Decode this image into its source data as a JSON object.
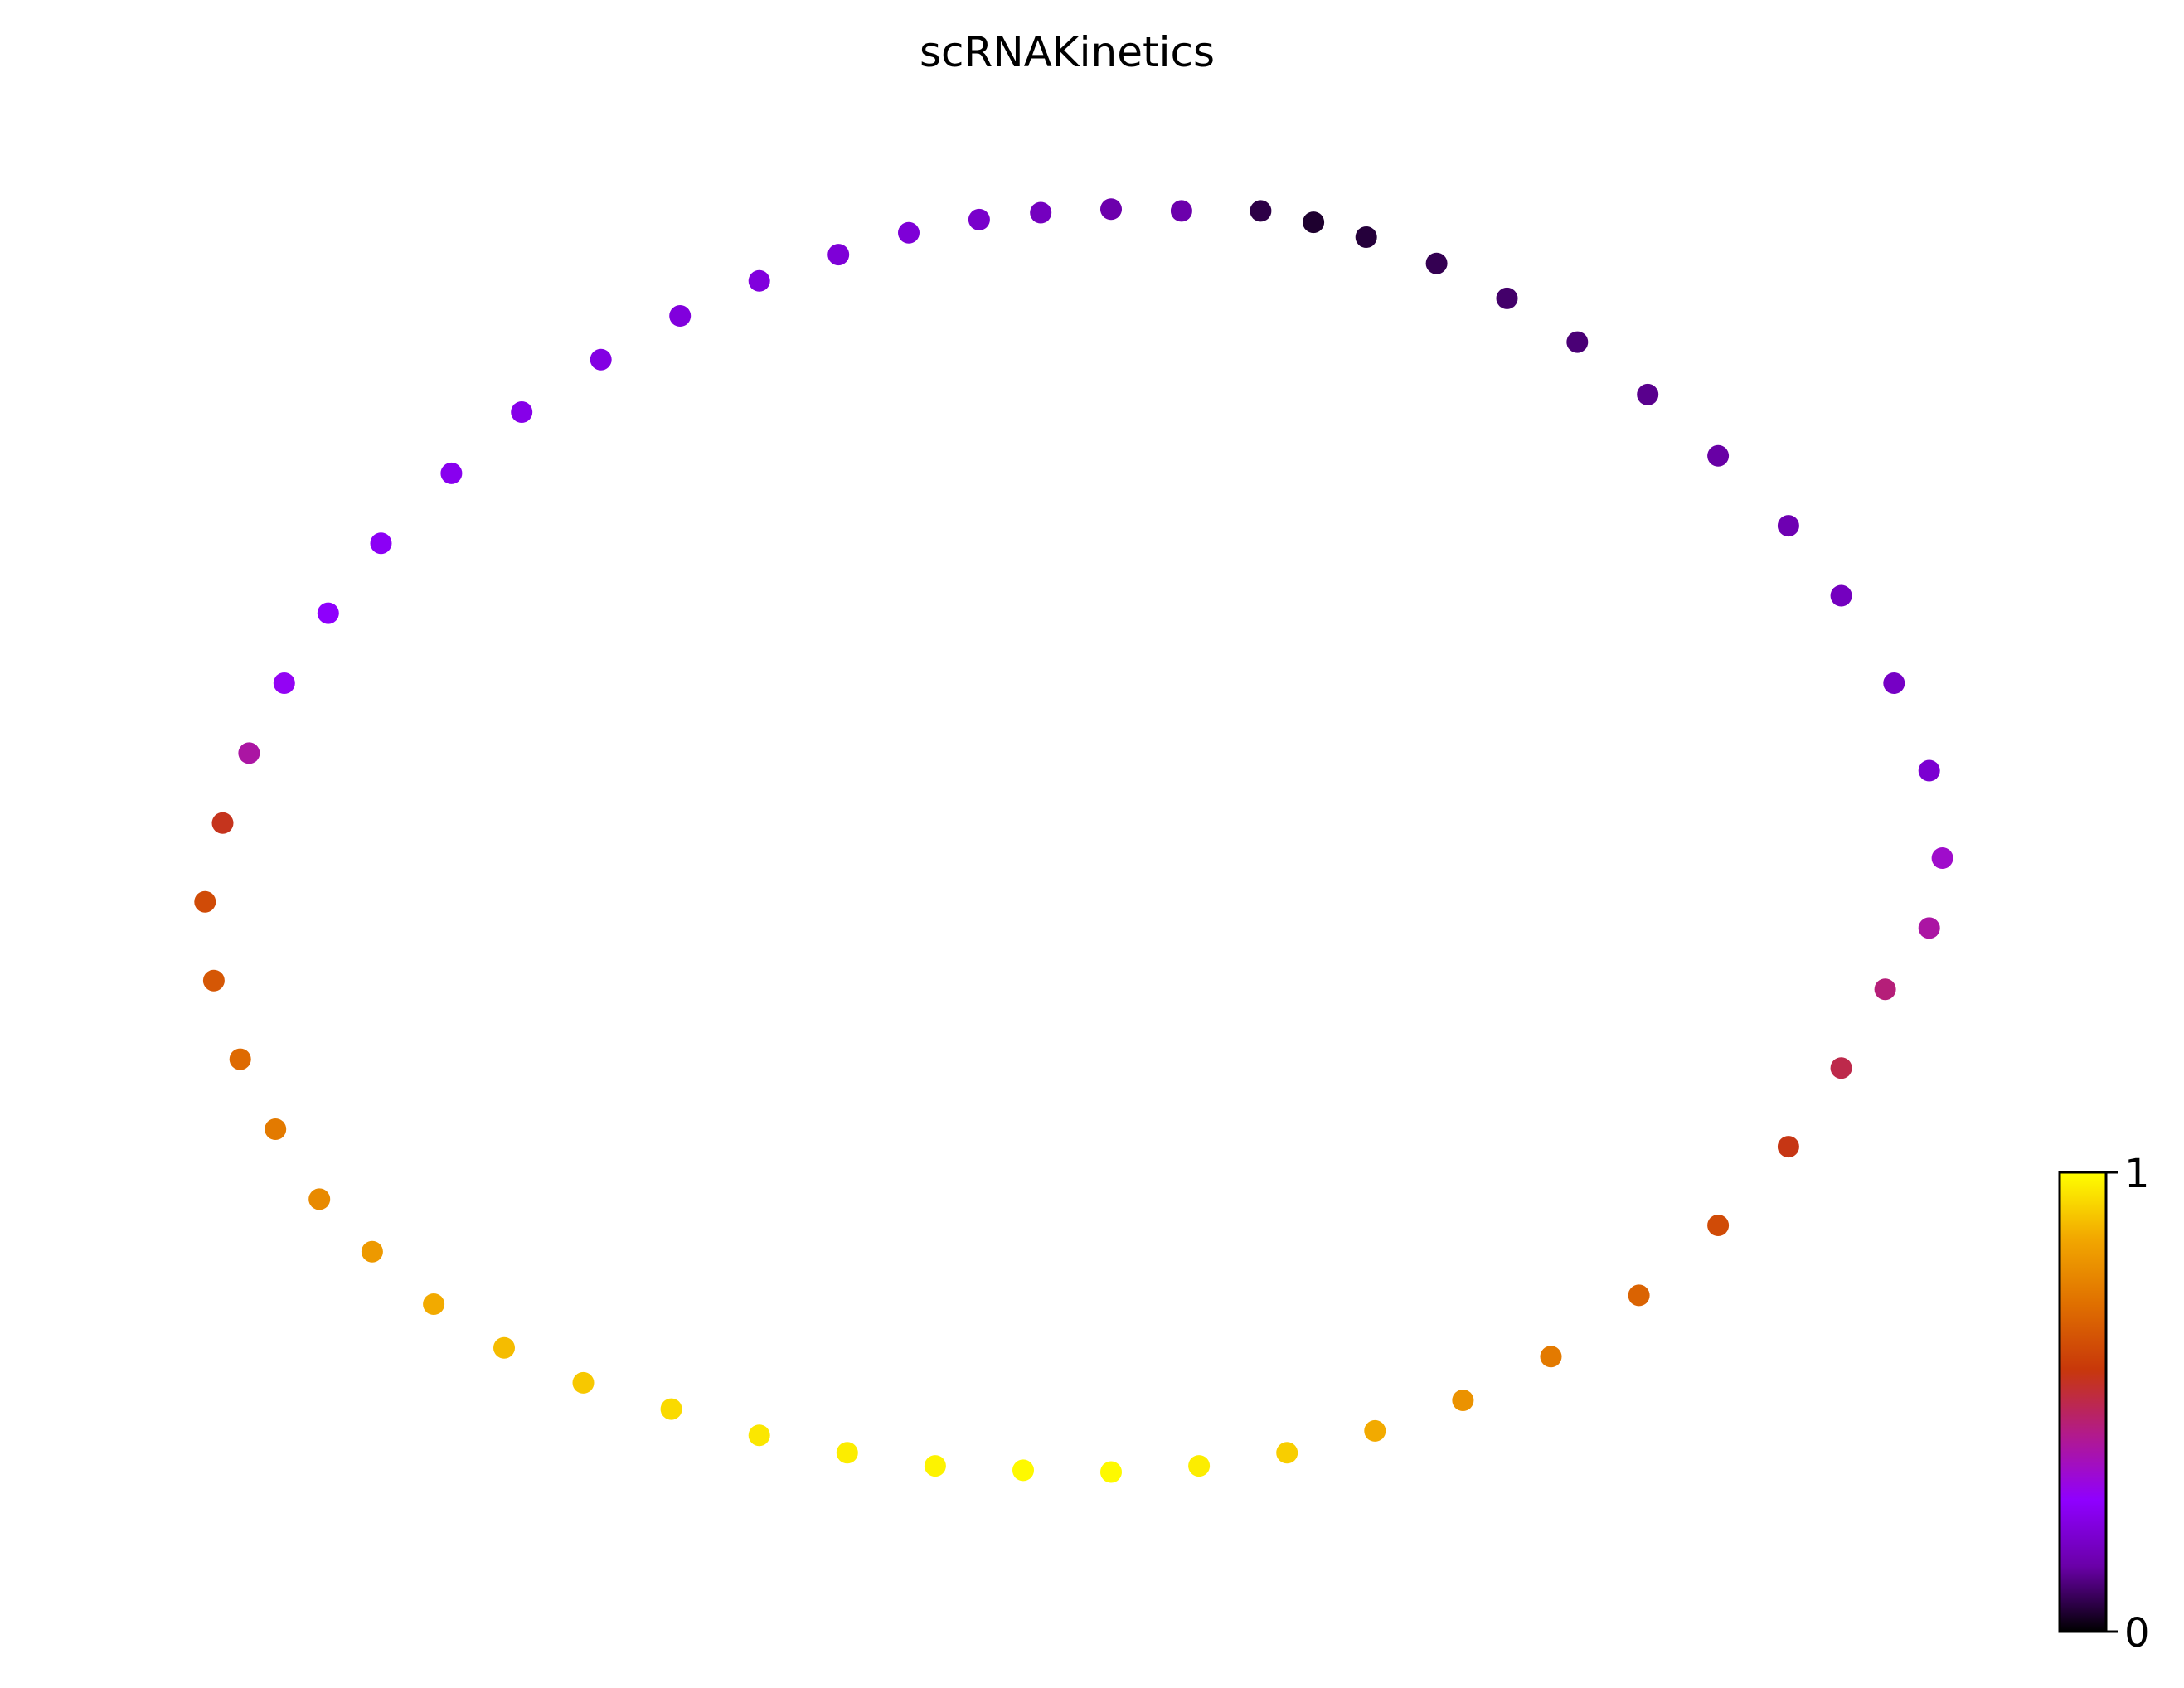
{
  "chart_data": {
    "type": "scatter",
    "title": "scRNAKinetics",
    "xlabel": "",
    "ylabel": "",
    "axes_visible": false,
    "grid": false,
    "colormap": "gnuplot",
    "color_stops": [
      "#000000",
      "#6a00a8",
      "#8f00ff",
      "#b21a8c",
      "#c8380a",
      "#e07000",
      "#f2a800",
      "#ffff00"
    ],
    "colorbar": {
      "position": "right",
      "range": [
        0,
        1
      ],
      "ticks": [
        {
          "value": 0,
          "label": "0"
        },
        {
          "value": 1,
          "label": "1"
        }
      ]
    },
    "xlim": [
      -1.1,
      1.1
    ],
    "ylim": [
      -0.82,
      0.82
    ],
    "points": [
      {
        "x": 0.28,
        "y": 0.727,
        "v": 0.04
      },
      {
        "x": 0.22,
        "y": 0.74,
        "v": 0.06
      },
      {
        "x": 0.34,
        "y": 0.71,
        "v": 0.05
      },
      {
        "x": 0.42,
        "y": 0.68,
        "v": 0.07
      },
      {
        "x": 0.5,
        "y": 0.64,
        "v": 0.09
      },
      {
        "x": 0.58,
        "y": 0.59,
        "v": 0.1
      },
      {
        "x": 0.66,
        "y": 0.53,
        "v": 0.12
      },
      {
        "x": 0.74,
        "y": 0.46,
        "v": 0.14
      },
      {
        "x": 0.82,
        "y": 0.38,
        "v": 0.16
      },
      {
        "x": 0.88,
        "y": 0.3,
        "v": 0.18
      },
      {
        "x": 0.94,
        "y": 0.2,
        "v": 0.19
      },
      {
        "x": 0.98,
        "y": 0.1,
        "v": 0.21
      },
      {
        "x": 0.995,
        "y": 0.0,
        "v": 0.35
      },
      {
        "x": 0.98,
        "y": -0.08,
        "v": 0.4
      },
      {
        "x": 0.13,
        "y": 0.74,
        "v": 0.15
      },
      {
        "x": 0.05,
        "y": 0.742,
        "v": 0.15
      },
      {
        "x": -0.03,
        "y": 0.738,
        "v": 0.18
      },
      {
        "x": -0.1,
        "y": 0.73,
        "v": 0.2
      },
      {
        "x": -0.18,
        "y": 0.715,
        "v": 0.22
      },
      {
        "x": -0.26,
        "y": 0.69,
        "v": 0.22
      },
      {
        "x": -0.35,
        "y": 0.66,
        "v": 0.23
      },
      {
        "x": -0.44,
        "y": 0.62,
        "v": 0.23
      },
      {
        "x": -0.53,
        "y": 0.57,
        "v": 0.24
      },
      {
        "x": -0.62,
        "y": 0.51,
        "v": 0.25
      },
      {
        "x": -0.7,
        "y": 0.44,
        "v": 0.26
      },
      {
        "x": -0.78,
        "y": 0.36,
        "v": 0.27
      },
      {
        "x": -0.84,
        "y": 0.28,
        "v": 0.28
      },
      {
        "x": -0.89,
        "y": 0.2,
        "v": 0.3
      },
      {
        "x": -0.93,
        "y": 0.12,
        "v": 0.4
      },
      {
        "x": -0.96,
        "y": 0.04,
        "v": 0.55
      },
      {
        "x": -0.98,
        "y": -0.05,
        "v": 0.62
      },
      {
        "x": -0.97,
        "y": -0.14,
        "v": 0.65
      },
      {
        "x": -0.94,
        "y": -0.23,
        "v": 0.7
      },
      {
        "x": -0.9,
        "y": -0.31,
        "v": 0.74
      },
      {
        "x": -0.85,
        "y": -0.39,
        "v": 0.78
      },
      {
        "x": -0.79,
        "y": -0.45,
        "v": 0.82
      },
      {
        "x": -0.72,
        "y": -0.51,
        "v": 0.86
      },
      {
        "x": -0.64,
        "y": -0.56,
        "v": 0.89
      },
      {
        "x": -0.55,
        "y": -0.6,
        "v": 0.91
      },
      {
        "x": -0.45,
        "y": -0.63,
        "v": 0.94
      },
      {
        "x": -0.35,
        "y": -0.66,
        "v": 0.96
      },
      {
        "x": -0.25,
        "y": -0.68,
        "v": 0.97
      },
      {
        "x": -0.15,
        "y": -0.695,
        "v": 0.98
      },
      {
        "x": -0.05,
        "y": -0.7,
        "v": 0.99
      },
      {
        "x": 0.05,
        "y": -0.702,
        "v": 0.99
      },
      {
        "x": 0.15,
        "y": -0.695,
        "v": 0.97
      },
      {
        "x": 0.25,
        "y": -0.68,
        "v": 0.92
      },
      {
        "x": 0.35,
        "y": -0.655,
        "v": 0.86
      },
      {
        "x": 0.45,
        "y": -0.62,
        "v": 0.8
      },
      {
        "x": 0.55,
        "y": -0.57,
        "v": 0.74
      },
      {
        "x": 0.65,
        "y": -0.5,
        "v": 0.68
      },
      {
        "x": 0.74,
        "y": -0.42,
        "v": 0.62
      },
      {
        "x": 0.82,
        "y": -0.33,
        "v": 0.56
      },
      {
        "x": 0.88,
        "y": -0.24,
        "v": 0.5
      },
      {
        "x": 0.93,
        "y": -0.15,
        "v": 0.45
      }
    ]
  }
}
